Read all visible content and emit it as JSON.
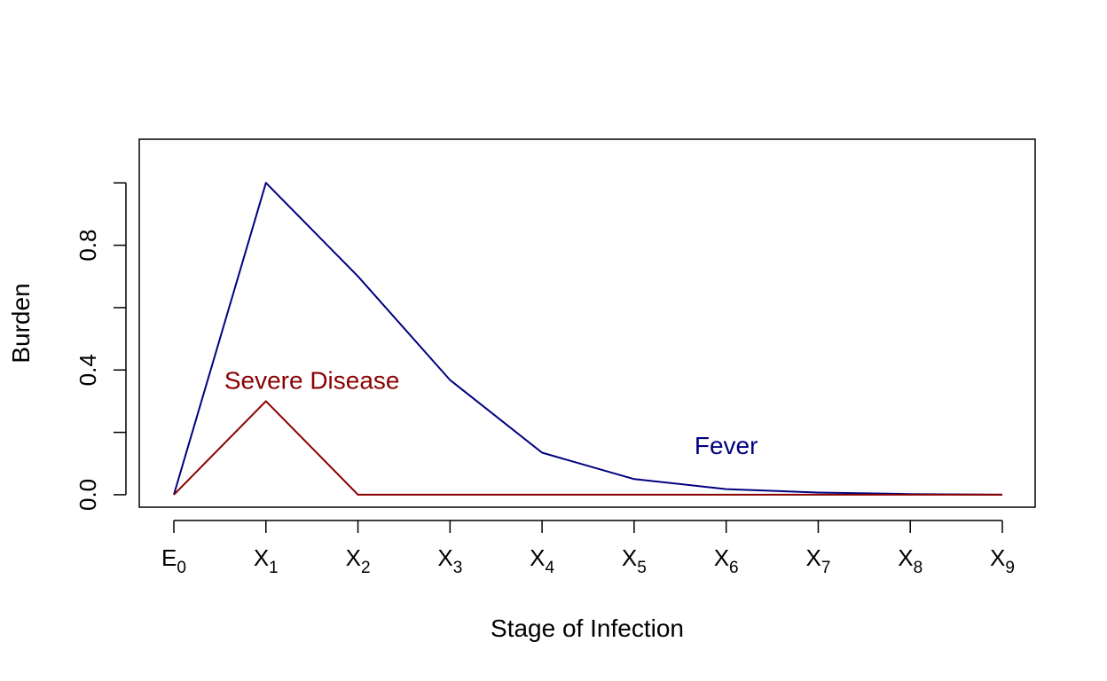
{
  "chart_data": {
    "type": "line",
    "title": "",
    "xlabel": "Stage of Infection",
    "ylabel": "Burden",
    "categories": [
      {
        "base": "E",
        "sub": "0"
      },
      {
        "base": "X",
        "sub": "1"
      },
      {
        "base": "X",
        "sub": "2"
      },
      {
        "base": "X",
        "sub": "3"
      },
      {
        "base": "X",
        "sub": "4"
      },
      {
        "base": "X",
        "sub": "5"
      },
      {
        "base": "X",
        "sub": "6"
      },
      {
        "base": "X",
        "sub": "7"
      },
      {
        "base": "X",
        "sub": "8"
      },
      {
        "base": "X",
        "sub": "9"
      }
    ],
    "ylim": [
      -0.04,
      1.14
    ],
    "y_ticks": [
      0,
      0.2,
      0.4,
      0.6,
      0.8,
      1.0
    ],
    "y_tick_labels": [
      {
        "value": 0,
        "label": "0.0"
      },
      {
        "value": 0.4,
        "label": "0.4"
      },
      {
        "value": 0.8,
        "label": "0.8"
      }
    ],
    "grid": false,
    "legend": "none",
    "series": [
      {
        "name": "Fever",
        "color": "#000080",
        "values": [
          0,
          1.0,
          0.7,
          0.368,
          0.135,
          0.05,
          0.018,
          0.007,
          0.002,
          0.0
        ],
        "label_at": {
          "x": 6,
          "y": 0.13
        }
      },
      {
        "name": "Severe Disease",
        "color": "#8b0000",
        "values": [
          0,
          0.3,
          0,
          0,
          0,
          0,
          0,
          0,
          0,
          0
        ],
        "label_at": {
          "x": 1.5,
          "y": 0.34
        }
      }
    ]
  }
}
